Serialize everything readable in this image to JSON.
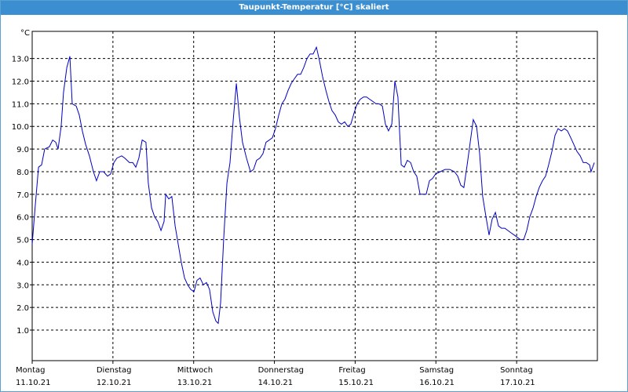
{
  "chart_data": {
    "type": "line",
    "title": "Taupunkt-Temperatur [°C] skaliert",
    "y_unit": "°C",
    "xlim": [
      0,
      168
    ],
    "xticks": [
      {
        "value": 0,
        "label": "Montag"
      },
      {
        "value": 24,
        "label": "Dienstag"
      },
      {
        "value": 48,
        "label": "Mittwoch"
      },
      {
        "value": 72,
        "label": "Donnerstag"
      },
      {
        "value": 96,
        "label": "Freitag"
      },
      {
        "value": 120,
        "label": "Samstag"
      },
      {
        "value": 144,
        "label": "Sonntag"
      }
    ],
    "xtick_dates": [
      "11.10.21",
      "12.10.21",
      "13.10.21",
      "14.10.21",
      "15.10.21",
      "16.10.21",
      "17.10.21"
    ],
    "ylim": [
      -0.35,
      14.2
    ],
    "yticks": [
      {
        "value": 1,
        "label": "1.0"
      },
      {
        "value": 2,
        "label": "2.0"
      },
      {
        "value": 3,
        "label": "3.0"
      },
      {
        "value": 4,
        "label": "4.0"
      },
      {
        "value": 5,
        "label": "5.0"
      },
      {
        "value": 6,
        "label": "6.0"
      },
      {
        "value": 7,
        "label": "7.0"
      },
      {
        "value": 8,
        "label": "8.0"
      },
      {
        "value": 9,
        "label": "9.0"
      },
      {
        "value": 10,
        "label": "10.0"
      },
      {
        "value": 11,
        "label": "11.0"
      },
      {
        "value": 12,
        "label": "12.0"
      },
      {
        "value": 13,
        "label": "13.0"
      }
    ],
    "grid": true,
    "color": "#0000c0",
    "x": [
      0,
      0.9,
      1.9,
      2.8,
      3.7,
      5.1,
      6.1,
      7.0,
      7.7,
      8.6,
      9.3,
      10.3,
      11.2,
      11.9,
      13.1,
      14.0,
      14.9,
      15.9,
      17.0,
      18.2,
      19.1,
      20.1,
      21.2,
      22.4,
      23.3,
      24.3,
      25.2,
      26.6,
      27.5,
      28.9,
      29.9,
      30.8,
      31.7,
      32.7,
      33.8,
      34.5,
      35.5,
      36.4,
      37.3,
      38.3,
      39.2,
      39.7,
      40.6,
      41.5,
      42.5,
      43.4,
      44.3,
      45.3,
      46.2,
      47.1,
      48.1,
      49.0,
      49.9,
      50.9,
      51.8,
      52.7,
      53.7,
      54.6,
      55.3,
      56.0,
      56.9,
      57.9,
      58.8,
      59.7,
      60.7,
      61.6,
      62.5,
      63.7,
      64.9,
      65.8,
      66.7,
      67.7,
      68.6,
      69.5,
      70.5,
      71.4,
      72.3,
      73.3,
      74.2,
      75.1,
      76.1,
      77.0,
      77.9,
      78.9,
      79.8,
      80.7,
      81.7,
      82.6,
      83.5,
      84.5,
      85.4,
      86.3,
      87.3,
      88.2,
      89.1,
      90.1,
      91.0,
      91.9,
      92.9,
      93.8,
      94.7,
      95.7,
      96.6,
      97.5,
      98.5,
      99.4,
      100.3,
      101.3,
      102.2,
      103.1,
      104.1,
      105.0,
      105.9,
      106.9,
      107.8,
      108.7,
      109.7,
      110.6,
      111.5,
      112.5,
      113.4,
      114.3,
      115.3,
      116.2,
      117.1,
      118.1,
      119.0,
      119.9,
      121.3,
      122.7,
      124.1,
      125.5,
      126.5,
      127.4,
      128.3,
      129.3,
      130.2,
      131.1,
      132.1,
      133.0,
      133.9,
      134.9,
      135.8,
      136.7,
      137.7,
      138.6,
      139.5,
      140.5,
      141.4,
      142.3,
      143.3,
      144.2,
      145.1,
      146.1,
      147.0,
      147.9,
      148.9,
      149.8,
      150.7,
      151.7,
      152.6,
      153.5,
      154.5,
      155.4,
      156.3,
      157.3,
      158.2,
      159.1,
      160.1,
      161.0,
      161.9,
      162.9,
      163.8,
      164.7,
      165.7,
      166.1,
      167.1
    ],
    "values": [
      4.8,
      6.5,
      8.2,
      8.3,
      9.0,
      9.1,
      9.4,
      9.3,
      9.0,
      10.0,
      11.5,
      12.6,
      13.1,
      11.0,
      10.9,
      10.5,
      9.8,
      9.2,
      8.7,
      8.0,
      7.6,
      8.0,
      8.0,
      7.8,
      7.9,
      8.4,
      8.6,
      8.7,
      8.6,
      8.4,
      8.4,
      8.2,
      8.6,
      9.4,
      9.3,
      7.5,
      6.4,
      6.0,
      5.8,
      5.4,
      5.8,
      7.0,
      6.8,
      6.9,
      5.6,
      4.8,
      4.0,
      3.3,
      3.0,
      2.8,
      2.7,
      3.2,
      3.3,
      3.0,
      3.1,
      2.8,
      1.8,
      1.4,
      1.3,
      2.2,
      5.0,
      7.5,
      8.4,
      10.2,
      11.9,
      10.4,
      9.3,
      8.6,
      8.0,
      8.1,
      8.5,
      8.6,
      8.8,
      9.3,
      9.4,
      9.5,
      9.9,
      10.5,
      11.0,
      11.2,
      11.6,
      11.9,
      12.1,
      12.3,
      12.3,
      12.6,
      13.0,
      13.2,
      13.2,
      13.5,
      12.9,
      12.2,
      11.6,
      11.1,
      10.7,
      10.5,
      10.2,
      10.1,
      10.2,
      10.0,
      10.1,
      10.6,
      11.0,
      11.2,
      11.3,
      11.3,
      11.2,
      11.1,
      11.0,
      11.0,
      10.9,
      10.1,
      9.8,
      10.1,
      12.0,
      11.3,
      8.3,
      8.2,
      8.5,
      8.4,
      8.0,
      7.8,
      7.0,
      7.0,
      7.0,
      7.6,
      7.7,
      7.9,
      8.0,
      8.1,
      8.1,
      8.0,
      7.8,
      7.4,
      7.3,
      8.3,
      9.3,
      10.3,
      10.0,
      8.8,
      6.9,
      6.0,
      5.2,
      5.9,
      6.2,
      5.6,
      5.5,
      5.5,
      5.4,
      5.3,
      5.2,
      5.1,
      5.0,
      5.0,
      5.4,
      6.0,
      6.4,
      6.9,
      7.3,
      7.6,
      7.8,
      8.3,
      8.9,
      9.6,
      9.9,
      9.8,
      9.9,
      9.8,
      9.5,
      9.2,
      8.9,
      8.7,
      8.4,
      8.4,
      8.3,
      8.0,
      8.4
    ]
  }
}
